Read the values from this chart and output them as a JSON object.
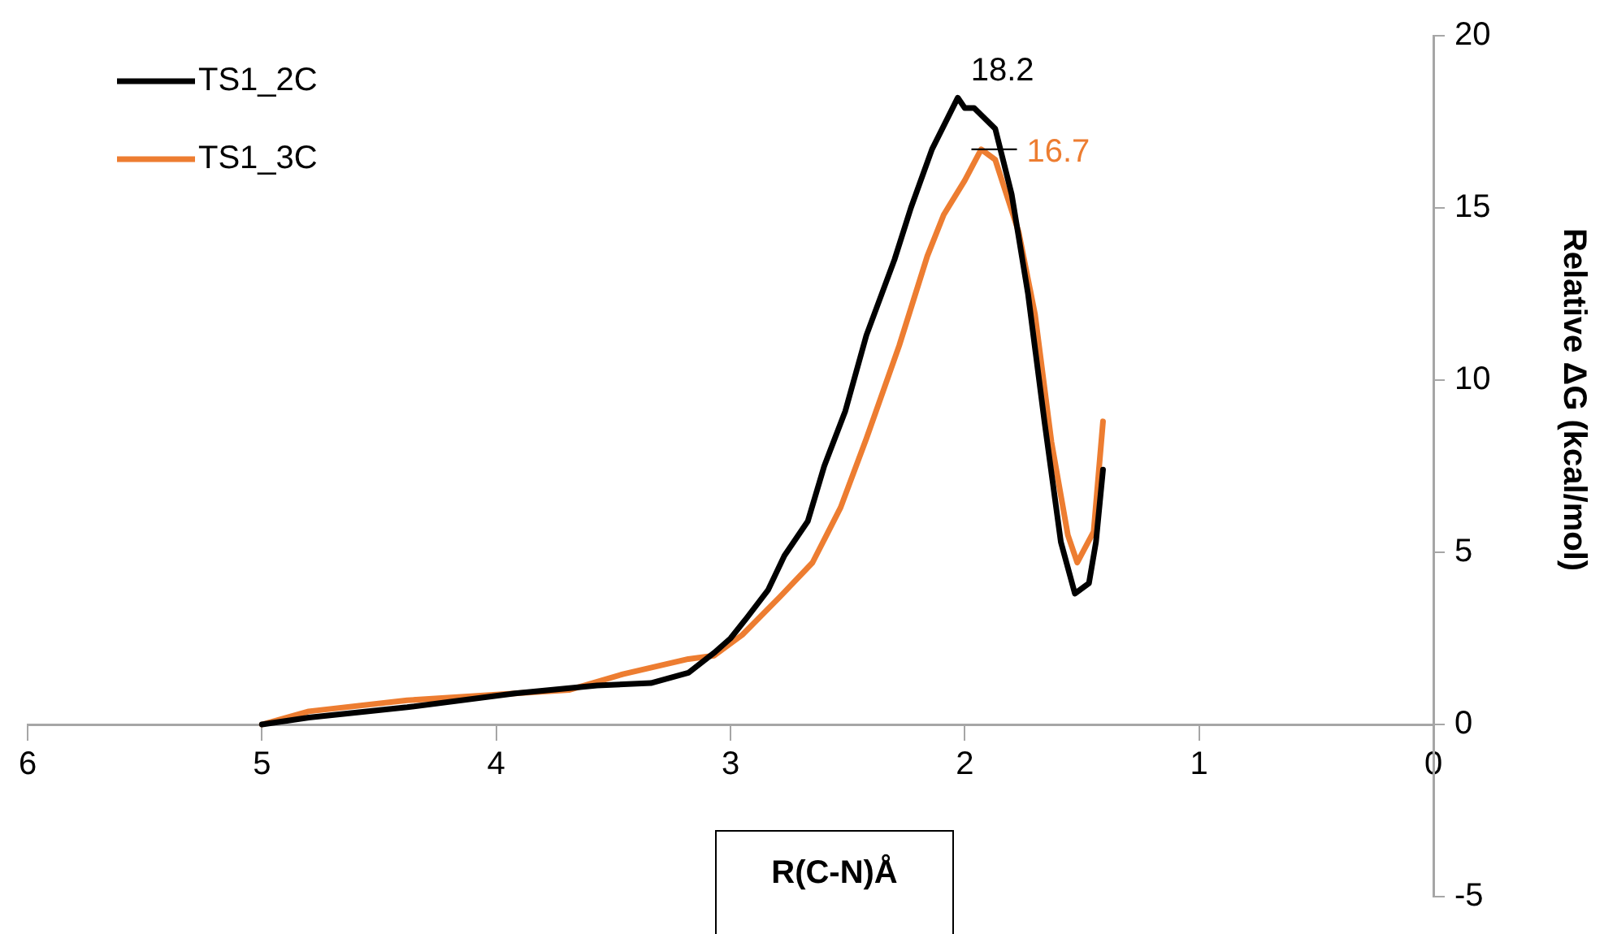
{
  "chart_data": {
    "type": "line",
    "xlabel": "R(C-N)Å",
    "ylabel": "Relative ΔG (kcal/mol)",
    "xlim": [
      6,
      0
    ],
    "ylim": [
      -5,
      20
    ],
    "xticks": [
      6,
      5,
      4,
      3,
      2,
      1,
      0
    ],
    "yticks": [
      -5,
      0,
      5,
      10,
      15,
      20
    ],
    "legend": "top left",
    "marker": "none",
    "series": [
      {
        "name": "TS1_2C",
        "color": "#000000",
        "x": [
          5,
          4.8,
          4.38,
          3.92,
          3.57,
          3.34,
          3.18,
          3.07,
          3.0,
          2.93,
          2.84,
          2.77,
          2.67,
          2.6,
          2.51,
          2.42,
          2.3,
          2.23,
          2.14,
          2.03,
          2.0,
          1.96,
          1.87,
          1.8,
          1.73,
          1.66,
          1.59,
          1.53,
          1.47,
          1.44,
          1.41
        ],
        "values": [
          0,
          0.2,
          0.5,
          0.9,
          1.13,
          1.2,
          1.5,
          2.08,
          2.5,
          3.1,
          3.9,
          4.9,
          5.9,
          7.5,
          9.1,
          11.3,
          13.5,
          15.0,
          16.7,
          18.2,
          17.9,
          17.9,
          17.3,
          15.4,
          12.5,
          8.8,
          5.3,
          3.8,
          4.1,
          5.3,
          7.4
        ],
        "value_labels": [
          null,
          null,
          null,
          null,
          null,
          null,
          null,
          null,
          null,
          null,
          null,
          null,
          null,
          null,
          null,
          null,
          null,
          null,
          null,
          "18.2",
          null,
          null,
          null,
          null,
          null,
          null,
          null,
          null,
          null,
          null,
          null
        ]
      },
      {
        "name": "TS1_3C",
        "color": "#ed7d31",
        "x": [
          5,
          4.8,
          4.38,
          4.04,
          3.69,
          3.46,
          3.18,
          3.07,
          2.95,
          2.79,
          2.65,
          2.53,
          2.42,
          2.28,
          2.16,
          2.09,
          2.0,
          1.93,
          1.87,
          1.77,
          1.7,
          1.63,
          1.56,
          1.52,
          1.45,
          1.41
        ],
        "values": [
          0,
          0.38,
          0.7,
          0.85,
          1.0,
          1.46,
          1.9,
          2.0,
          2.6,
          3.7,
          4.7,
          6.3,
          8.3,
          11.0,
          13.6,
          14.8,
          15.8,
          16.7,
          16.4,
          14.3,
          11.9,
          8.2,
          5.5,
          4.7,
          5.6,
          8.8
        ],
        "value_labels": [
          null,
          null,
          null,
          null,
          null,
          null,
          null,
          null,
          null,
          null,
          null,
          null,
          null,
          null,
          null,
          null,
          null,
          "16.7",
          null,
          null,
          null,
          null,
          null,
          null,
          null,
          null
        ]
      }
    ]
  }
}
